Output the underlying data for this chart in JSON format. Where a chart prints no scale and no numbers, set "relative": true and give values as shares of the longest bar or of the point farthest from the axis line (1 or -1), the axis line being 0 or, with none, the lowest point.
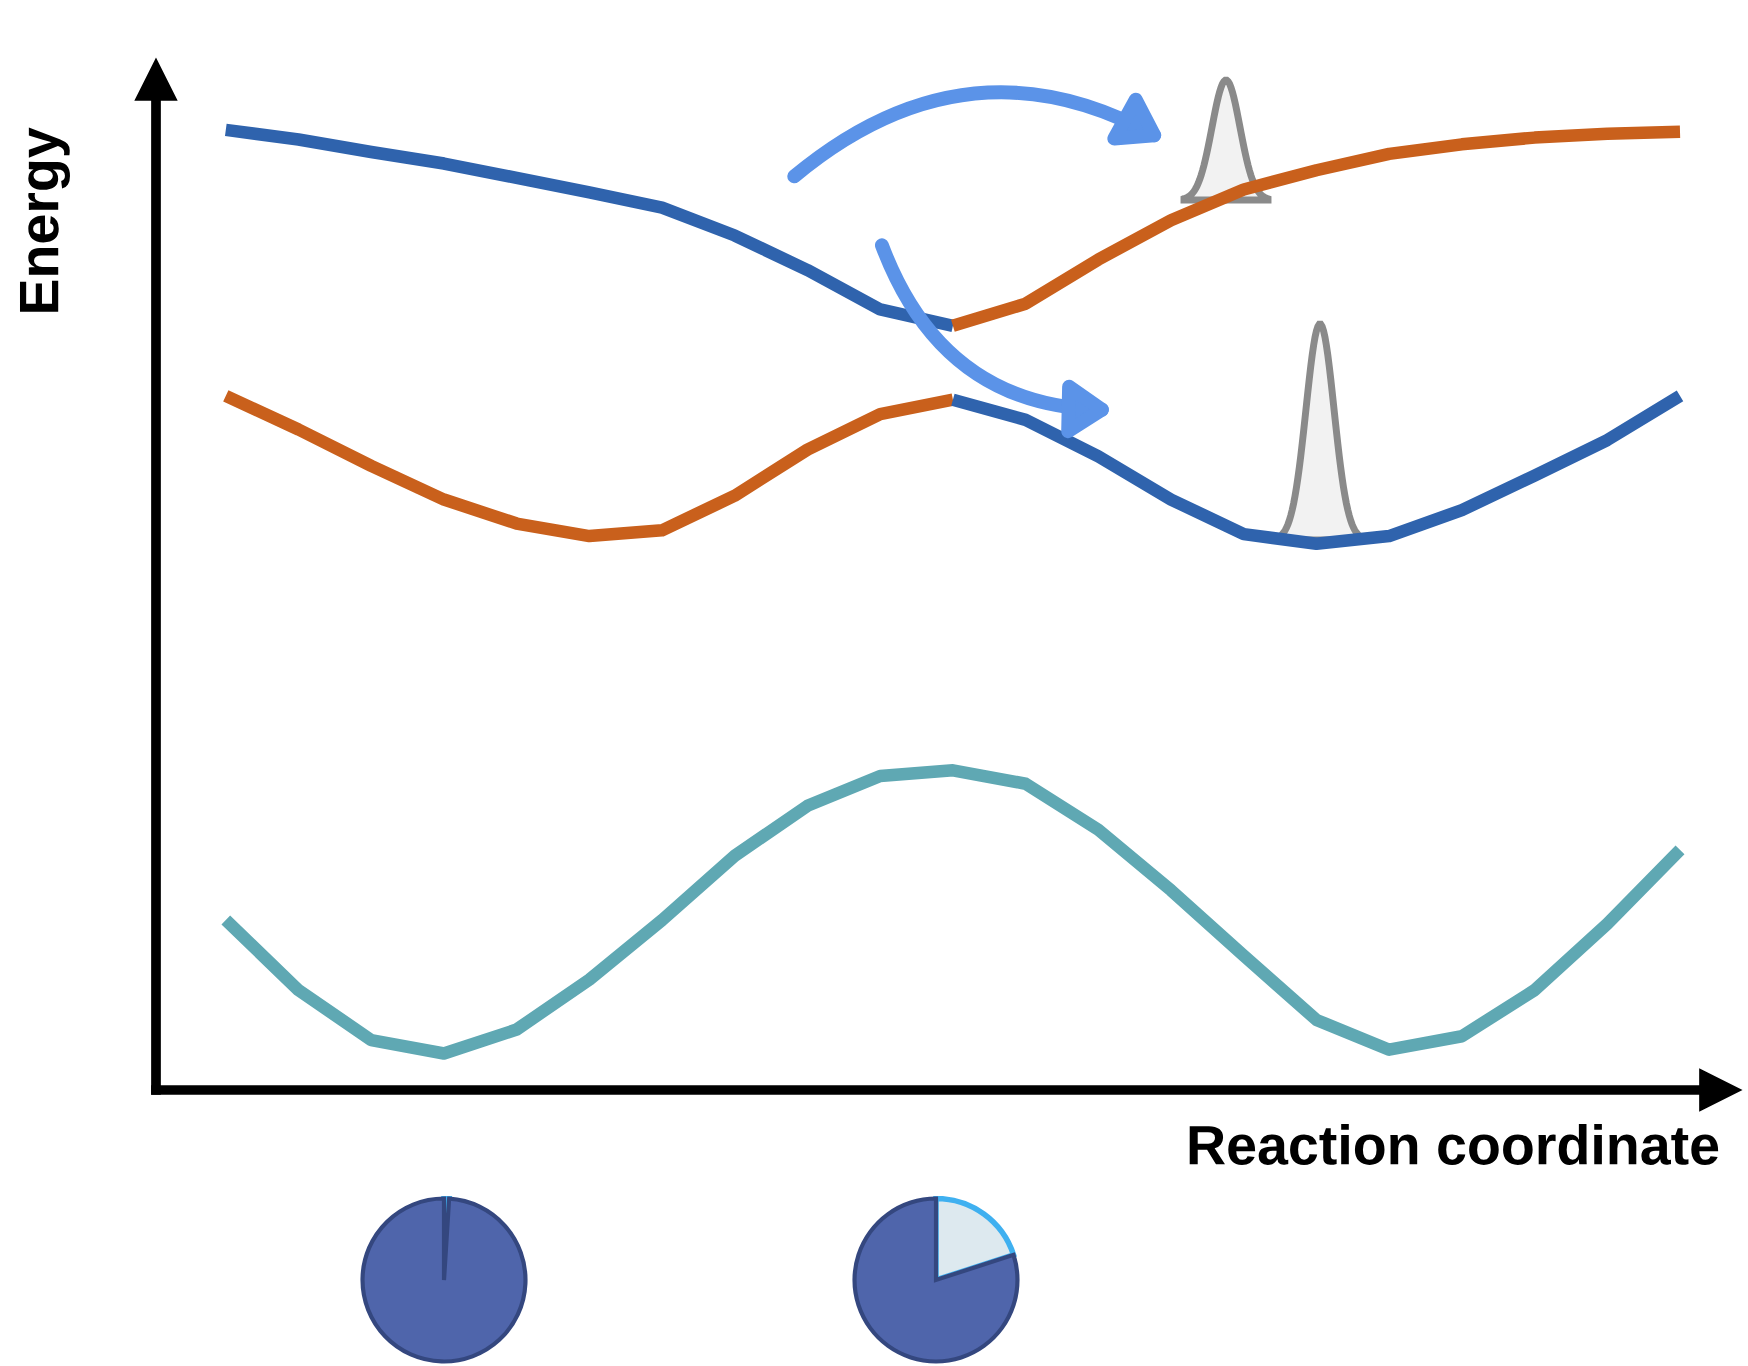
{
  "chart_data": {
    "type": "line",
    "relative": true,
    "xlabel": "Reaction coordinate",
    "ylabel": "Energy",
    "legend": false,
    "marker": "none",
    "line_style": "solid",
    "categories": [
      null,
      null,
      null,
      null,
      null,
      null,
      null,
      null,
      null,
      null,
      null,
      null,
      null,
      null,
      null,
      null,
      null,
      null,
      null,
      null,
      null
    ],
    "series": [
      {
        "color": "#2f63ad",
        "values": [
          1.0,
          0.99,
          0.977,
          0.965,
          0.95,
          0.935,
          0.919,
          0.89,
          0.854,
          0.813,
          0.796,
          null,
          null,
          null,
          null,
          null,
          null,
          null,
          null,
          null,
          null
        ]
      },
      {
        "color": "#c9601c",
        "values": [
          null,
          null,
          null,
          null,
          null,
          null,
          null,
          null,
          null,
          null,
          0.796,
          0.819,
          0.865,
          0.906,
          0.938,
          0.958,
          0.975,
          0.985,
          0.992,
          0.996,
          0.998
        ]
      },
      {
        "color": "#c9601c",
        "values": [
          0.723,
          0.688,
          0.65,
          0.615,
          0.59,
          0.577,
          0.583,
          0.619,
          0.667,
          0.704,
          0.719,
          null,
          null,
          null,
          null,
          null,
          null,
          null,
          null,
          null,
          null
        ]
      },
      {
        "color": "#2f63ad",
        "values": [
          null,
          null,
          null,
          null,
          null,
          null,
          null,
          null,
          null,
          null,
          0.719,
          0.698,
          0.66,
          0.615,
          0.579,
          0.569,
          0.577,
          0.604,
          0.64,
          0.677,
          0.723
        ]
      },
      {
        "color": "#5fa8b3",
        "values": [
          0.177,
          0.104,
          0.052,
          0.038,
          0.063,
          0.115,
          0.177,
          0.244,
          0.296,
          0.327,
          0.333,
          0.319,
          0.271,
          0.208,
          0.14,
          0.073,
          0.042,
          0.056,
          0.104,
          0.173,
          0.25
        ]
      }
    ]
  }
}
